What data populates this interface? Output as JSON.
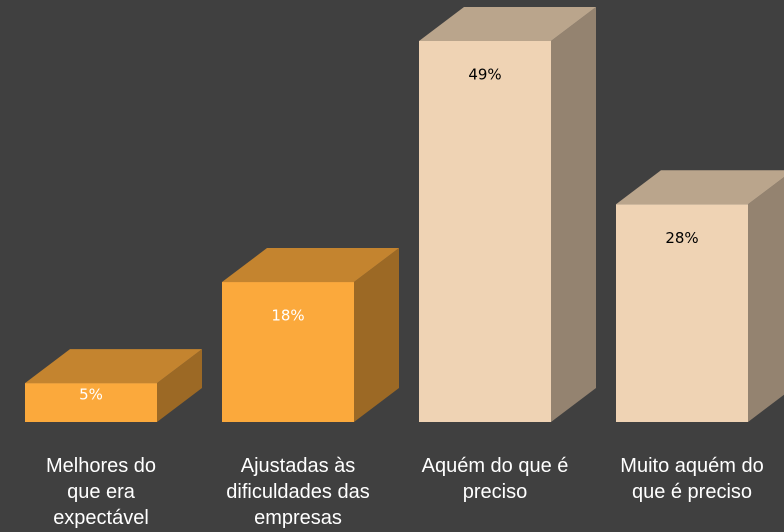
{
  "chart_data": {
    "type": "bar3d",
    "categories": [
      "Melhores do\nque era\nexpectável",
      "Ajustadas às\ndificuldades das\nempresas",
      "Aquém do que é\npreciso",
      "Muito aquém do\nque é preciso"
    ],
    "values": [
      5,
      18,
      49,
      28
    ],
    "value_labels": [
      "5%",
      "18%",
      "49%",
      "28%"
    ],
    "colors": [
      "#fba93c",
      "#fba93c",
      "#efd3b4",
      "#efd3b4"
    ],
    "value_label_colors": [
      "#ffffff",
      "#ffffff",
      "#000000",
      "#000000"
    ]
  }
}
